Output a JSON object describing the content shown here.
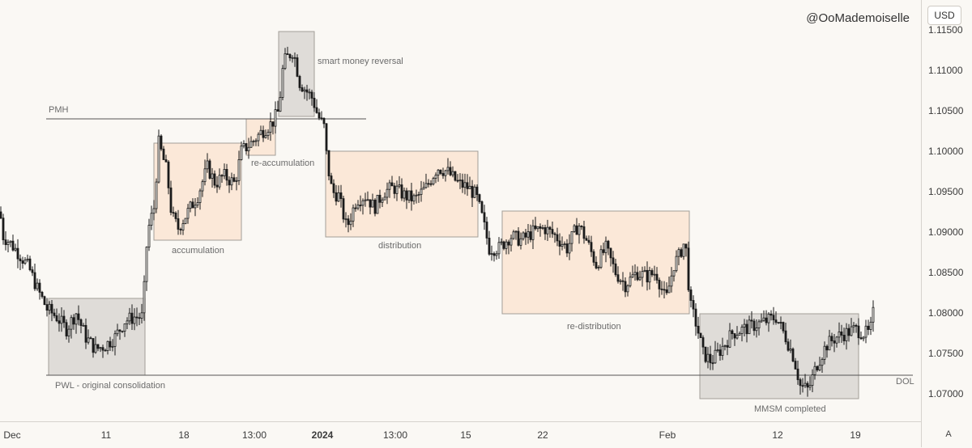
{
  "watermark": "@OoMademoiselle",
  "currency_button": "USD",
  "auto_button": "A",
  "colors": {
    "background": "#faf8f4",
    "candle": "#1a1a1a",
    "peach_box_fill": "#fce7d6",
    "grey_box_fill": "#dddad6",
    "box_border": "#9a958f",
    "level_line": "#555555"
  },
  "chart_data": {
    "type": "candlestick",
    "symbol_currency": "USD",
    "y_axis": {
      "ticks": [
        "1.11500",
        "1.11000",
        "1.10500",
        "1.10000",
        "1.09500",
        "1.09000",
        "1.08500",
        "1.08000",
        "1.07500",
        "1.07000"
      ],
      "range": [
        1.066,
        1.1165
      ]
    },
    "x_axis": {
      "ticks": [
        {
          "label": "Dec",
          "bold": false
        },
        {
          "label": "11",
          "bold": false
        },
        {
          "label": "18",
          "bold": false
        },
        {
          "label": "13:00",
          "bold": false
        },
        {
          "label": "2024",
          "bold": true
        },
        {
          "label": "13:00",
          "bold": false
        },
        {
          "label": "15",
          "bold": false
        },
        {
          "label": "22",
          "bold": false
        },
        {
          "label": "Feb",
          "bold": false
        },
        {
          "label": "12",
          "bold": false
        },
        {
          "label": "19",
          "bold": false
        }
      ]
    },
    "price_path": [
      [
        0,
        1.0925
      ],
      [
        4,
        1.0895
      ],
      [
        14,
        1.0885
      ],
      [
        26,
        1.087
      ],
      [
        36,
        1.0855
      ],
      [
        46,
        1.083
      ],
      [
        58,
        1.0805
      ],
      [
        70,
        1.0795
      ],
      [
        82,
        1.078
      ],
      [
        94,
        1.08
      ],
      [
        106,
        1.077
      ],
      [
        118,
        1.0755
      ],
      [
        130,
        1.076
      ],
      [
        142,
        1.077
      ],
      [
        154,
        1.079
      ],
      [
        166,
        1.0795
      ],
      [
        176,
        1.0795
      ],
      [
        182,
        1.09
      ],
      [
        190,
        1.093
      ],
      [
        196,
        1.101
      ],
      [
        206,
        1.0975
      ],
      [
        212,
        1.092
      ],
      [
        220,
        1.0905
      ],
      [
        232,
        1.0925
      ],
      [
        244,
        1.0945
      ],
      [
        256,
        1.098
      ],
      [
        266,
        1.096
      ],
      [
        276,
        1.097
      ],
      [
        290,
        1.096
      ],
      [
        298,
        1.1
      ],
      [
        310,
        1.101
      ],
      [
        324,
        1.1025
      ],
      [
        336,
        1.1035
      ],
      [
        344,
        1.105
      ],
      [
        350,
        1.111
      ],
      [
        362,
        1.1125
      ],
      [
        370,
        1.1085
      ],
      [
        378,
        1.1075
      ],
      [
        386,
        1.1065
      ],
      [
        392,
        1.1045
      ],
      [
        400,
        1.103
      ],
      [
        404,
        1.0985
      ],
      [
        410,
        1.095
      ],
      [
        418,
        1.0945
      ],
      [
        428,
        1.0905
      ],
      [
        440,
        1.094
      ],
      [
        452,
        1.0945
      ],
      [
        462,
        1.093
      ],
      [
        474,
        1.095
      ],
      [
        486,
        1.0955
      ],
      [
        500,
        1.0945
      ],
      [
        512,
        1.094
      ],
      [
        526,
        1.0955
      ],
      [
        540,
        1.098
      ],
      [
        552,
        1.0975
      ],
      [
        566,
        1.096
      ],
      [
        578,
        1.0955
      ],
      [
        588,
        1.0945
      ],
      [
        596,
        1.0915
      ],
      [
        604,
        1.088
      ],
      [
        616,
        1.088
      ],
      [
        630,
        1.0895
      ],
      [
        644,
        1.089
      ],
      [
        658,
        1.09
      ],
      [
        672,
        1.0905
      ],
      [
        686,
        1.0895
      ],
      [
        700,
        1.088
      ],
      [
        714,
        1.091
      ],
      [
        724,
        1.089
      ],
      [
        736,
        1.086
      ],
      [
        748,
        1.088
      ],
      [
        760,
        1.085
      ],
      [
        772,
        1.0835
      ],
      [
        786,
        1.085
      ],
      [
        798,
        1.0845
      ],
      [
        810,
        1.085
      ],
      [
        822,
        1.0815
      ],
      [
        832,
        1.086
      ],
      [
        838,
        1.087
      ],
      [
        846,
        1.089
      ],
      [
        852,
        1.081
      ],
      [
        860,
        1.0785
      ],
      [
        868,
        1.075
      ],
      [
        878,
        1.074
      ],
      [
        890,
        1.0755
      ],
      [
        904,
        1.0775
      ],
      [
        918,
        1.078
      ],
      [
        932,
        1.0785
      ],
      [
        946,
        1.079
      ],
      [
        958,
        1.0795
      ],
      [
        970,
        1.077
      ],
      [
        980,
        1.0745
      ],
      [
        988,
        1.071
      ],
      [
        998,
        1.0705
      ],
      [
        1008,
        1.0735
      ],
      [
        1020,
        1.076
      ],
      [
        1032,
        1.077
      ],
      [
        1044,
        1.0775
      ],
      [
        1056,
        1.078
      ],
      [
        1066,
        1.0775
      ],
      [
        1074,
        1.0775
      ],
      [
        1079,
        1.0805
      ]
    ],
    "levels": [
      {
        "label": "PMH",
        "price": 1.104
      },
      {
        "label": "DOL",
        "price": 1.0723
      },
      {
        "label": "",
        "price": 1.0723
      }
    ],
    "zones": [
      {
        "label": "PWL - original consolidation",
        "top": 1.0818,
        "bottom": 1.0723,
        "style": "grey"
      },
      {
        "label": "accumulation",
        "top": 1.101,
        "bottom": 1.089,
        "style": "peach"
      },
      {
        "label": "re-accumulation",
        "top": 1.104,
        "bottom": 1.0995,
        "style": "peach"
      },
      {
        "label": "smart money reversal",
        "top": 1.1148,
        "bottom": 1.1043,
        "style": "grey"
      },
      {
        "label": "distribution",
        "top": 1.1,
        "bottom": 1.0894,
        "style": "peach"
      },
      {
        "label": "re-distribution",
        "top": 1.0926,
        "bottom": 1.0799,
        "style": "peach"
      },
      {
        "label": "MMSM completed",
        "top": 1.0799,
        "bottom": 1.0694,
        "style": "grey"
      }
    ]
  }
}
